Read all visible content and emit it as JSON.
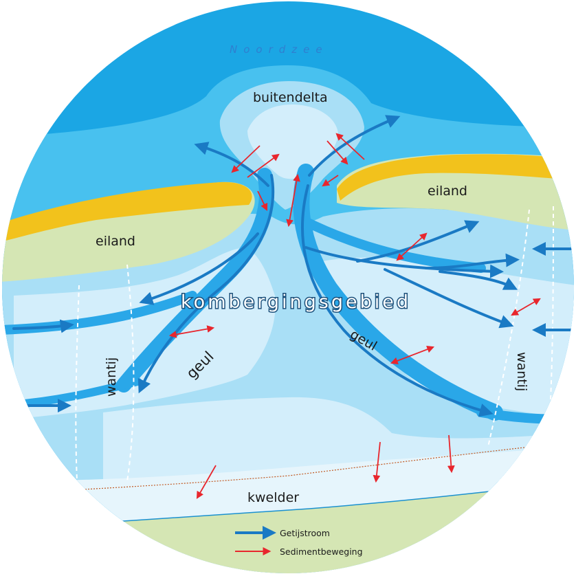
{
  "labels": {
    "sea": "Noordzee",
    "outer_delta": "buitendelta",
    "island_left": "eiland",
    "island_right": "eiland",
    "basin": "kombergingsgebied",
    "channel_left": "geul",
    "channel_right": "geul",
    "watershed_left": "wantij",
    "watershed_right": "wantij",
    "salt_marsh": "kwelder"
  },
  "legend": {
    "tidal_current": "Getijstroom",
    "sediment_movement": "Sedimentbeweging"
  },
  "colors": {
    "sea_deep": "#1ba6e4",
    "sea_mid": "#48c1ef",
    "shoal_light": "#a9dff6",
    "shoal_pale": "#d3eefb",
    "channel": "#1e8fd6",
    "sand": "#f2c21c",
    "land": "#d5e6b4",
    "tide_arrow": "#1a7ac4",
    "sediment_arrow": "#e8262d"
  }
}
